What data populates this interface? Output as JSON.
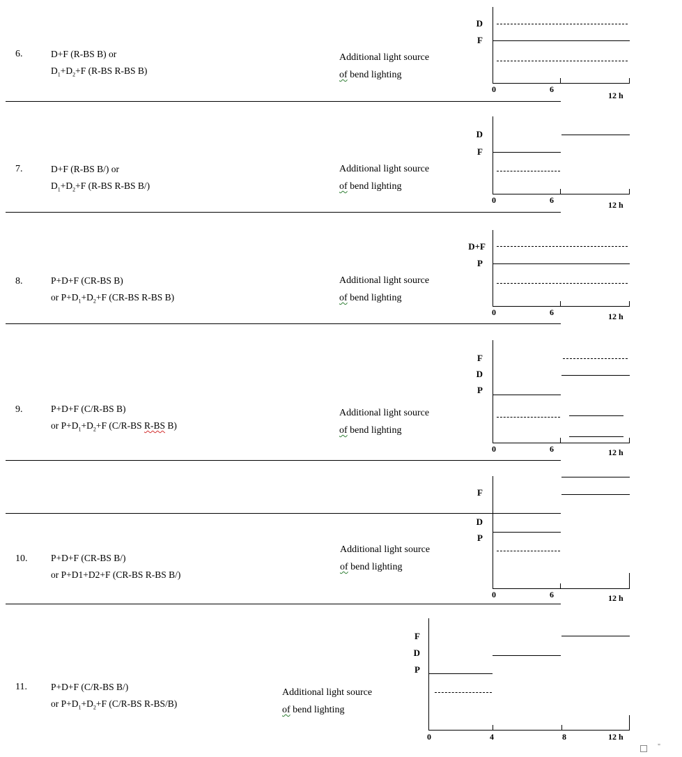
{
  "rows": [
    {
      "number": "6.",
      "line1": "D+F (R-BS B) or",
      "line2": "D<sub>1</sub>+D<sub>2</sub>+F (R-BS R-BS B)",
      "additional_line1": "Additional light source",
      "additional_of": "of",
      "additional_rest": " bend lighting",
      "labels": [
        "D",
        "F"
      ],
      "ticks": [
        "0",
        "6",
        "12 h"
      ]
    },
    {
      "number": "7.",
      "line1": "D+F (R-BS B/) or",
      "line2": "D<sub>1</sub>+D<sub>2</sub>+F (R-BS R-BS B/)",
      "additional_line1": "Additional light source",
      "additional_of": "of",
      "additional_rest": " bend lighting",
      "labels": [
        "D",
        "F"
      ],
      "ticks": [
        "0",
        "6",
        "12 h"
      ]
    },
    {
      "number": "8.",
      "line1": "P+D+F (CR-BS B)",
      "line2": "or P+D<sub>1</sub>+D<sub>2</sub>+F (CR-BS R-BS B)",
      "additional_line1": "Additional light source",
      "additional_of": "of",
      "additional_rest": " bend lighting",
      "labels": [
        "D+F",
        "P"
      ],
      "ticks": [
        "0",
        "6",
        "12 h"
      ]
    },
    {
      "number": "9.",
      "line1": "P+D+F (C/R-BS B)",
      "line2": "or P+D<sub>1</sub>+D<sub>2</sub>+F (C/R-BS <span class=\"spell-red\">R-BS</span> B)",
      "additional_line1": "Additional light source",
      "additional_of": "of",
      "additional_rest": " bend lighting",
      "labels": [
        "F",
        "D",
        "P"
      ],
      "ticks": [
        "0",
        "6",
        "12 h"
      ]
    },
    {
      "number": "10.",
      "line1": "P+D+F (CR-BS B/)",
      "line2": "or P+D1+D2+F (CR-BS R-BS B/)",
      "additional_line1": "Additional light source",
      "additional_of": "of",
      "additional_rest": " bend lighting",
      "labels": [
        "F",
        "D",
        "P"
      ],
      "ticks": [
        "0",
        "6",
        "12 h"
      ]
    },
    {
      "number": "11.",
      "line1": "P+D+F (C/R-BS B/)",
      "line2": "or P+D<sub>1</sub>+D<sub>2</sub>+F (C/R-BS R-BS/B)",
      "additional_line1": "Additional light source",
      "additional_of": "of",
      "additional_rest": " bend lighting",
      "labels": [
        "F",
        "D",
        "P"
      ],
      "ticks": [
        "0",
        "4",
        "8",
        "12 h"
      ]
    }
  ],
  "trailing_mark": "\""
}
